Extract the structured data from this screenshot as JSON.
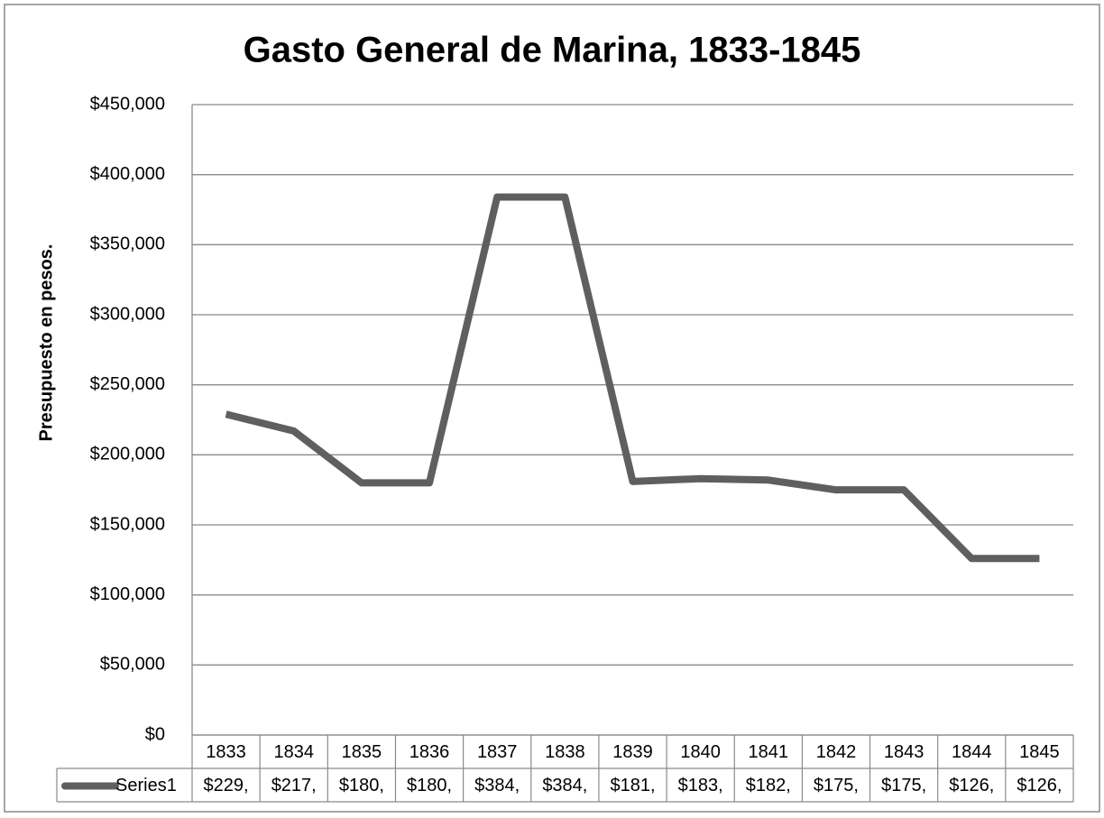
{
  "chart_data": {
    "type": "line",
    "title": "Gasto General de Marina, 1833-1845",
    "y_label": "Presupuesto en pesos.",
    "categories": [
      "1833",
      "1834",
      "1835",
      "1836",
      "1837",
      "1838",
      "1839",
      "1840",
      "1841",
      "1842",
      "1843",
      "1844",
      "1845"
    ],
    "series": [
      {
        "name": "Series1",
        "color": "#5f5f5f",
        "values": [
          229000,
          217000,
          180000,
          180000,
          384000,
          384000,
          181000,
          183000,
          182000,
          175000,
          175000,
          126000,
          126000
        ],
        "value_labels": [
          "$229,",
          "$217,",
          "$180,",
          "$180,",
          "$384,",
          "$384,",
          "$181,",
          "$183,",
          "$182,",
          "$175,",
          "$175,",
          "$126,",
          "$126,"
        ]
      }
    ],
    "ylim": [
      0,
      450000
    ],
    "yticks": [
      {
        "value": 0,
        "label": "$0"
      },
      {
        "value": 50000,
        "label": "$50,000"
      },
      {
        "value": 100000,
        "label": "$100,000"
      },
      {
        "value": 150000,
        "label": "$150,000"
      },
      {
        "value": 200000,
        "label": "$200,000"
      },
      {
        "value": 250000,
        "label": "$250,000"
      },
      {
        "value": 300000,
        "label": "$300,000"
      },
      {
        "value": 350000,
        "label": "$350,000"
      },
      {
        "value": 400000,
        "label": "$400,000"
      },
      {
        "value": 450000,
        "label": "$450,000"
      }
    ],
    "grid": true,
    "data_table": true
  }
}
